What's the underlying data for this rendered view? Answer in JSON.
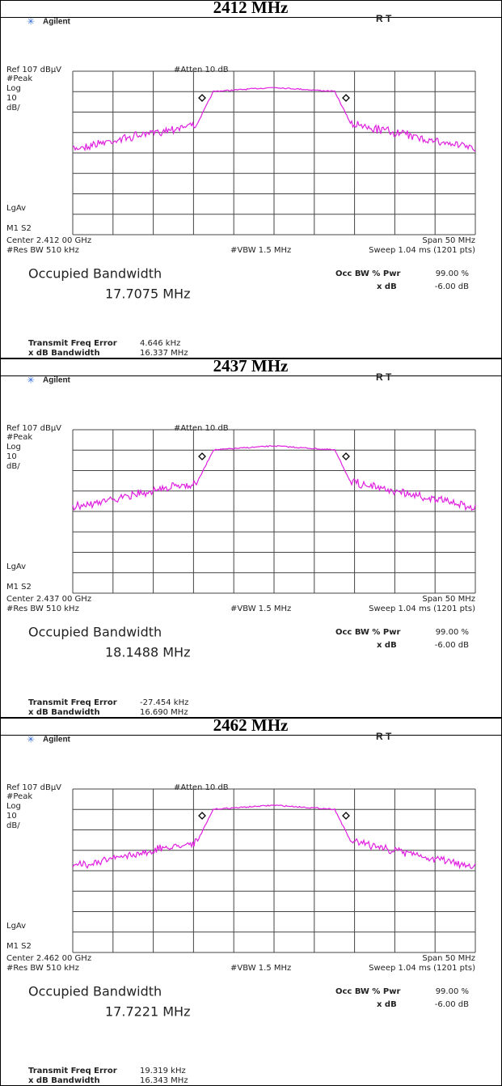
{
  "panels": [
    {
      "title": "2412 MHz",
      "brand": "Agilent",
      "status": "R T",
      "ref": "Ref 107 dBµV",
      "atten": "#Atten 10 dB",
      "det": "#Peak",
      "scale_type": "Log",
      "scale_val": "10",
      "scale_unit": "dB/",
      "avg": "LgAv",
      "markers": "M1 S2",
      "center": "Center 2.412 00 GHz",
      "span": "Span 50 MHz",
      "rbw": "#Res BW 510 kHz",
      "vbw": "#VBW 1.5 MHz",
      "sweep": "Sweep 1.04 ms (1201 pts)",
      "obw_label": "Occupied Bandwidth",
      "obw_value": "17.7075 MHz",
      "pwr_label": "Occ BW % Pwr",
      "pwr_value": "99.00 %",
      "xdb_label": "x dB",
      "xdb_value": "-6.00 dB",
      "tfe_label": "Transmit Freq Error",
      "tfe_value": "4.646 kHz",
      "xbw_label": "x dB Bandwidth",
      "xbw_value": "16.337 MHz"
    },
    {
      "title": "2437 MHz",
      "brand": "Agilent",
      "status": "R T",
      "ref": "Ref 107 dBµV",
      "atten": "#Atten 10 dB",
      "det": "#Peak",
      "scale_type": "Log",
      "scale_val": "10",
      "scale_unit": "dB/",
      "avg": "LgAv",
      "markers": "M1 S2",
      "center": "Center 2.437 00 GHz",
      "span": "Span 50 MHz",
      "rbw": "#Res BW 510 kHz",
      "vbw": "#VBW 1.5 MHz",
      "sweep": "Sweep 1.04 ms (1201 pts)",
      "obw_label": "Occupied Bandwidth",
      "obw_value": "18.1488 MHz",
      "pwr_label": "Occ BW % Pwr",
      "pwr_value": "99.00 %",
      "xdb_label": "x dB",
      "xdb_value": "-6.00 dB",
      "tfe_label": "Transmit Freq Error",
      "tfe_value": "-27.454 kHz",
      "xbw_label": "x dB Bandwidth",
      "xbw_value": "16.690 MHz"
    },
    {
      "title": "2462 MHz",
      "brand": "Agilent",
      "status": "R T",
      "ref": "Ref 107 dBµV",
      "atten": "#Atten 10 dB",
      "det": "#Peak",
      "scale_type": "Log",
      "scale_val": "10",
      "scale_unit": "dB/",
      "avg": "LgAv",
      "markers": "M1 S2",
      "center": "Center 2.462 00 GHz",
      "span": "Span 50 MHz",
      "rbw": "#Res BW 510 kHz",
      "vbw": "#VBW 1.5 MHz",
      "sweep": "Sweep 1.04 ms (1201 pts)",
      "obw_label": "Occupied Bandwidth",
      "obw_value": "17.7221 MHz",
      "pwr_label": "Occ BW % Pwr",
      "pwr_value": "99.00 %",
      "xdb_label": "x dB",
      "xdb_value": "-6.00 dB",
      "tfe_label": "Transmit Freq Error",
      "tfe_value": "19.319 kHz",
      "xbw_label": "x dB Bandwidth",
      "xbw_value": "16.343 MHz"
    }
  ]
}
